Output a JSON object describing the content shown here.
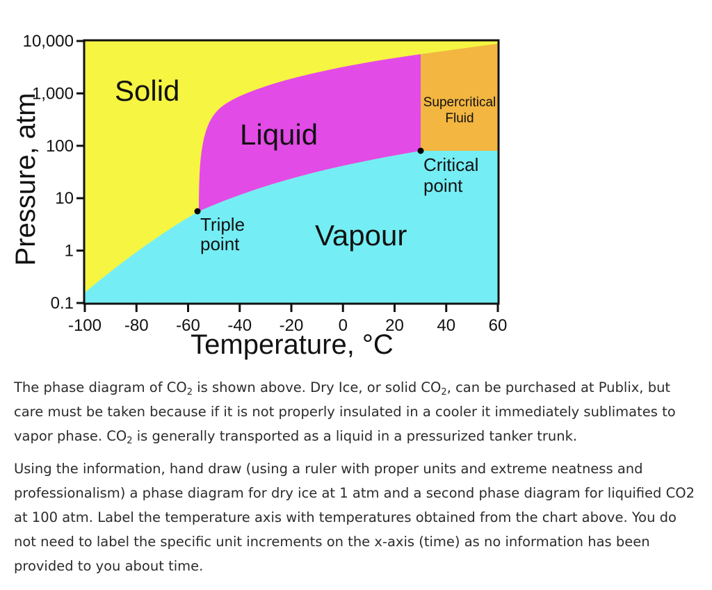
{
  "diagram": {
    "region_labels": {
      "solid": "Solid",
      "liquid": "Liquid",
      "vapour": "Vapour",
      "supercritical_line1": "Supercritical",
      "supercritical_line2": "Fluid"
    },
    "points": [
      {
        "id": "triple",
        "label_line1": "Triple",
        "label_line2": "point",
        "temperature": -57,
        "pressure": 5.1
      },
      {
        "id": "critical",
        "label_line1": "Critical",
        "label_line2": "point",
        "temperature": 31,
        "pressure": 73
      }
    ],
    "x_axis": {
      "label": "Temperature, °C",
      "range": [
        -100,
        60
      ],
      "ticks": [
        {
          "value": -100,
          "text": "-100"
        },
        {
          "value": -80,
          "text": "-80"
        },
        {
          "value": -60,
          "text": "-60"
        },
        {
          "value": -40,
          "text": "-40"
        },
        {
          "value": -20,
          "text": "-20"
        },
        {
          "value": 0,
          "text": "0"
        },
        {
          "value": 20,
          "text": "20"
        },
        {
          "value": 40,
          "text": "40"
        },
        {
          "value": 60,
          "text": "60"
        }
      ]
    },
    "y_axis": {
      "label": "Pressure, atm",
      "scale": "log",
      "range": [
        0.1,
        10000
      ],
      "ticks": [
        {
          "value": 10000,
          "text": "10,000"
        },
        {
          "value": 1000,
          "text": "1,000"
        },
        {
          "value": 100,
          "text": "100"
        },
        {
          "value": 10,
          "text": "10"
        },
        {
          "value": 1,
          "text": "1"
        },
        {
          "value": 0.1,
          "text": "0.1"
        }
      ]
    },
    "colors": {
      "solid": "#f5f542",
      "liquid": "#e24be6",
      "vapour": "#74eef4",
      "supercritical": "#f2b641",
      "frame": "#111111"
    }
  },
  "paragraph1": {
    "a": "The phase diagram of CO",
    "sub1": "2",
    "b": " is shown above.  Dry Ice, or solid CO",
    "sub2": "2",
    "c": ", can be purchased at Publix, but care must be taken because if it is not properly insulated in a cooler it immediately sublimates to vapor phase.  CO",
    "sub3": "2",
    "d": " is generally transported as a liquid in a pressurized tanker trunk."
  },
  "paragraph2": {
    "text": "Using the information, hand draw (using a ruler with proper units and extreme neatness and professionalism) a phase diagram for dry ice at 1 atm and a second phase diagram for liquified CO2 at 100 atm.  Label the temperature axis with temperatures obtained from the chart above.  You do not need to label the specific unit increments on the x-axis (time) as no information has been provided to you about time."
  }
}
